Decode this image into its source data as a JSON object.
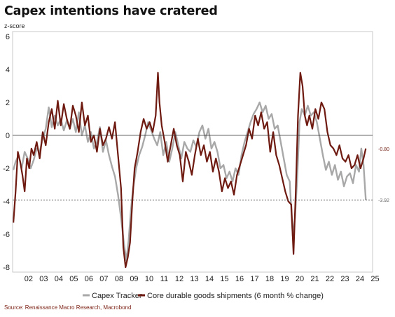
{
  "title": "Capex intentions have cratered",
  "unit_label": "z-score",
  "source": "Source: Renaissance Macro Research, Macrobond",
  "chart_data": {
    "type": "line",
    "xlim": [
      2001.4,
      2025.3
    ],
    "ylim": [
      -8.3,
      6.3
    ],
    "yticks": [
      6,
      4,
      2,
      0,
      -2,
      -4,
      -6,
      -8
    ],
    "xticks": [
      2002,
      2003,
      2004,
      2005,
      2006,
      2007,
      2008,
      2009,
      2010,
      2011,
      2012,
      2013,
      2014,
      2015,
      2016,
      2017,
      2018,
      2019,
      2020,
      2021,
      2022,
      2023,
      2024,
      2025
    ],
    "xtick_labels": [
      "02",
      "03",
      "04",
      "05",
      "06",
      "07",
      "08",
      "09",
      "10",
      "11",
      "12",
      "13",
      "14",
      "15",
      "16",
      "17",
      "18",
      "19",
      "20",
      "21",
      "22",
      "23",
      "24",
      "25"
    ],
    "reference_lines": [
      {
        "y": 0,
        "style": "solid"
      },
      {
        "y": -3.92,
        "style": "dashed"
      }
    ],
    "end_labels": [
      {
        "text": "-0.80",
        "y": -0.8
      },
      {
        "text": "-3.92",
        "y": -3.92
      }
    ],
    "legend_position": "bottom",
    "colors": {
      "capex": "#a8a8a8",
      "core": "#6e1a10",
      "source": "#7a1f12"
    },
    "series": [
      {
        "name": "Capex Tracker",
        "x": [
          2001.45,
          2001.6,
          2001.8,
          2002.0,
          2002.2,
          2002.4,
          2002.6,
          2002.8,
          2003.0,
          2003.2,
          2003.4,
          2003.6,
          2003.8,
          2004.0,
          2004.2,
          2004.4,
          2004.6,
          2004.8,
          2005.0,
          2005.2,
          2005.4,
          2005.6,
          2005.8,
          2006.0,
          2006.2,
          2006.4,
          2006.6,
          2006.8,
          2007.0,
          2007.2,
          2007.4,
          2007.6,
          2007.8,
          2008.0,
          2008.2,
          2008.4,
          2008.6,
          2008.8,
          2008.95,
          2009.1,
          2009.25,
          2009.4,
          2009.6,
          2009.8,
          2010.0,
          2010.2,
          2010.4,
          2010.6,
          2010.8,
          2011.0,
          2011.2,
          2011.4,
          2011.6,
          2011.8,
          2012.0,
          2012.2,
          2012.4,
          2012.6,
          2012.8,
          2013.0,
          2013.2,
          2013.4,
          2013.6,
          2013.8,
          2014.0,
          2014.2,
          2014.4,
          2014.6,
          2014.8,
          2015.0,
          2015.2,
          2015.4,
          2015.6,
          2015.8,
          2016.0,
          2016.2,
          2016.4,
          2016.6,
          2016.8,
          2017.0,
          2017.2,
          2017.4,
          2017.6,
          2017.8,
          2018.0,
          2018.2,
          2018.4,
          2018.6,
          2018.8,
          2019.0,
          2019.2,
          2019.4,
          2019.6,
          2019.8,
          2020.0,
          2020.15,
          2020.3,
          2020.45,
          2020.6,
          2020.8,
          2021.0,
          2021.2,
          2021.4,
          2021.6,
          2021.8,
          2022.0,
          2022.2,
          2022.4,
          2022.6,
          2022.8,
          2023.0,
          2023.2,
          2023.4,
          2023.6,
          2023.8,
          2024.0,
          2024.2,
          2024.4,
          2024.55,
          2024.7,
          2024.85
        ],
        "values": [
          -2.1,
          -1.6,
          -1.2,
          -2.0,
          -1.0,
          -1.4,
          -2.0,
          -1.5,
          -0.8,
          -1.0,
          -0.2,
          0.4,
          1.7,
          0.5,
          1.2,
          0.6,
          1.0,
          0.3,
          0.9,
          0.4,
          1.0,
          0.2,
          1.4,
          0.0,
          0.6,
          -0.4,
          0.2,
          -0.8,
          -0.4,
          0.5,
          -1.0,
          -0.3,
          -1.2,
          -1.9,
          -2.5,
          -3.6,
          -5.0,
          -6.6,
          -7.6,
          -6.4,
          -4.6,
          -3.2,
          -2.0,
          -1.2,
          -0.7,
          0.0,
          0.8,
          0.3,
          -0.2,
          -0.6,
          0.2,
          -1.2,
          -0.4,
          -1.6,
          -0.8,
          0.2,
          -0.6,
          -1.4,
          -0.4,
          -0.8,
          -1.0,
          -0.3,
          -0.7,
          0.2,
          0.6,
          -0.2,
          0.4,
          -0.8,
          -0.4,
          -1.0,
          -2.0,
          -1.8,
          -2.6,
          -2.2,
          -2.8,
          -2.0,
          -2.4,
          -1.2,
          -0.4,
          0.2,
          0.8,
          1.3,
          1.6,
          2.0,
          1.4,
          1.8,
          1.0,
          1.3,
          0.4,
          0.6,
          -0.4,
          -1.4,
          -2.4,
          -2.8,
          -6.1,
          -5.0,
          -2.5,
          0.8,
          1.6,
          1.2,
          1.8,
          1.2,
          1.4,
          0.8,
          -0.2,
          -1.2,
          -2.1,
          -1.6,
          -2.4,
          -1.8,
          -2.7,
          -2.2,
          -3.1,
          -2.5,
          -2.3,
          -2.9,
          -1.8,
          -2.2,
          -0.8,
          -1.8,
          -3.92
        ]
      },
      {
        "name": "Core durable goods shipments (6 month % change)",
        "x": [
          2001.45,
          2001.6,
          2001.75,
          2001.9,
          2002.05,
          2002.2,
          2002.35,
          2002.5,
          2002.65,
          2002.8,
          2003.0,
          2003.2,
          2003.4,
          2003.6,
          2003.8,
          2004.0,
          2004.2,
          2004.4,
          2004.6,
          2004.8,
          2005.0,
          2005.2,
          2005.4,
          2005.6,
          2005.8,
          2006.0,
          2006.2,
          2006.4,
          2006.6,
          2006.8,
          2007.0,
          2007.2,
          2007.4,
          2007.6,
          2007.8,
          2008.0,
          2008.2,
          2008.4,
          2008.6,
          2008.75,
          2008.9,
          2009.05,
          2009.2,
          2009.35,
          2009.5,
          2009.7,
          2009.9,
          2010.1,
          2010.3,
          2010.5,
          2010.7,
          2010.9,
          2011.05,
          2011.15,
          2011.3,
          2011.5,
          2011.7,
          2011.9,
          2012.1,
          2012.3,
          2012.5,
          2012.7,
          2012.9,
          2013.1,
          2013.3,
          2013.5,
          2013.7,
          2013.9,
          2014.1,
          2014.3,
          2014.5,
          2014.7,
          2014.9,
          2015.1,
          2015.3,
          2015.5,
          2015.7,
          2015.9,
          2016.1,
          2016.3,
          2016.5,
          2016.7,
          2016.9,
          2017.1,
          2017.3,
          2017.5,
          2017.7,
          2017.9,
          2018.1,
          2018.3,
          2018.5,
          2018.7,
          2018.9,
          2019.1,
          2019.3,
          2019.5,
          2019.7,
          2019.9,
          2020.05,
          2020.2,
          2020.35,
          2020.5,
          2020.65,
          2020.8,
          2020.95,
          2021.1,
          2021.3,
          2021.5,
          2021.7,
          2021.9,
          2022.1,
          2022.3,
          2022.5,
          2022.7,
          2022.9,
          2023.1,
          2023.3,
          2023.5,
          2023.7,
          2023.9,
          2024.1,
          2024.3,
          2024.5,
          2024.7,
          2024.85
        ],
        "values": [
          -5.3,
          -3.4,
          -1.0,
          -1.6,
          -2.4,
          -3.4,
          -1.4,
          -2.0,
          -0.8,
          -1.2,
          -0.4,
          -1.4,
          0.2,
          -0.6,
          0.8,
          1.6,
          0.4,
          2.1,
          0.6,
          1.9,
          1.0,
          0.4,
          1.8,
          1.2,
          0.2,
          2.0,
          0.6,
          1.2,
          -0.4,
          0.0,
          -1.0,
          0.4,
          -0.6,
          -0.2,
          0.5,
          -0.2,
          0.8,
          -1.2,
          -3.2,
          -6.8,
          -8.0,
          -7.4,
          -6.5,
          -4.0,
          -2.0,
          -1.0,
          0.2,
          1.0,
          0.4,
          0.8,
          0.2,
          1.2,
          3.8,
          2.0,
          0.6,
          -0.4,
          -1.6,
          -0.6,
          0.4,
          -0.6,
          -1.2,
          -2.8,
          -1.0,
          -1.6,
          -2.4,
          -1.2,
          -0.2,
          -1.2,
          -0.6,
          -1.6,
          -1.0,
          -2.2,
          -1.4,
          -2.2,
          -3.4,
          -2.6,
          -3.2,
          -2.8,
          -3.6,
          -2.4,
          -1.8,
          -1.2,
          -0.6,
          0.4,
          -0.2,
          1.2,
          0.6,
          1.4,
          0.4,
          0.8,
          -1.0,
          0.2,
          -1.2,
          -1.8,
          -2.6,
          -3.4,
          -4.0,
          -4.2,
          -7.2,
          -3.4,
          1.2,
          3.8,
          3.0,
          1.2,
          0.6,
          1.2,
          0.4,
          1.6,
          1.0,
          2.0,
          1.6,
          0.2,
          -0.6,
          -0.8,
          -1.2,
          -0.6,
          -1.4,
          -1.6,
          -1.2,
          -2.0,
          -1.8,
          -1.2,
          -2.0,
          -1.4,
          -0.8
        ]
      }
    ]
  }
}
